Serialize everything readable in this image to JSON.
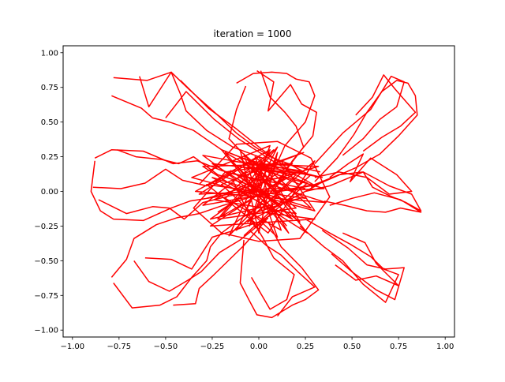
{
  "chart_data": {
    "type": "line",
    "title": "iteration = 1000",
    "xlabel": "",
    "ylabel": "",
    "xlim": [
      -1.05,
      1.05
    ],
    "ylim": [
      -1.05,
      1.05
    ],
    "xticks": [
      -1.0,
      -0.75,
      -0.5,
      -0.25,
      0.0,
      0.25,
      0.5,
      0.75,
      1.0
    ],
    "xtick_labels": [
      "−1.00",
      "−0.75",
      "−0.50",
      "−0.25",
      "0.00",
      "0.25",
      "0.50",
      "0.75",
      "1.00"
    ],
    "yticks": [
      -1.0,
      -0.75,
      -0.5,
      -0.25,
      0.0,
      0.25,
      0.5,
      0.75,
      1.0
    ],
    "ytick_labels": [
      "−1.00",
      "−0.75",
      "−0.50",
      "−0.25",
      "0.00",
      "0.25",
      "0.50",
      "0.75",
      "1.00"
    ],
    "grid": false,
    "line_color": "#ff0000",
    "series": [
      {
        "x": [
          -0.78,
          -0.6,
          -0.47,
          -0.37,
          -0.22,
          -0.12,
          -0.03,
          0.06,
          0.16,
          0.27
        ],
        "y": [
          0.82,
          0.8,
          0.86,
          0.73,
          0.55,
          0.42,
          0.33,
          0.25,
          0.2,
          0.12
        ]
      },
      {
        "x": [
          -0.79,
          -0.63,
          -0.57,
          -0.48,
          -0.35,
          -0.2,
          -0.05,
          0.1,
          0.22
        ],
        "y": [
          0.69,
          0.6,
          0.53,
          0.5,
          0.44,
          0.3,
          0.22,
          0.12,
          0.05
        ]
      },
      {
        "x": [
          -0.64,
          -0.59,
          -0.47,
          -0.42,
          -0.39,
          -0.28,
          -0.14,
          0.02,
          0.15
        ],
        "y": [
          0.83,
          0.61,
          0.86,
          0.7,
          0.58,
          0.44,
          0.32,
          0.24,
          0.12
        ]
      },
      {
        "x": [
          -0.5,
          -0.39,
          -0.24,
          -0.11,
          0.05,
          0.16,
          0.29
        ],
        "y": [
          0.53,
          0.72,
          0.52,
          0.38,
          0.24,
          0.15,
          0.05
        ]
      },
      {
        "x": [
          -0.42,
          -0.27,
          -0.12,
          0.02,
          0.14
        ],
        "y": [
          0.8,
          0.6,
          0.45,
          0.3,
          0.18
        ]
      },
      {
        "x": [
          -0.12,
          -0.03,
          0.07,
          0.15,
          0.2,
          0.27,
          0.3,
          0.25,
          0.14,
          0.08,
          -0.02
        ],
        "y": [
          0.78,
          0.85,
          0.86,
          0.85,
          0.81,
          0.79,
          0.69,
          0.5,
          0.33,
          0.15,
          0.0
        ]
      },
      {
        "x": [
          -0.01,
          0.08,
          0.05,
          0.17,
          0.23,
          0.31,
          0.29,
          0.18,
          0.1
        ],
        "y": [
          0.87,
          0.79,
          0.58,
          0.77,
          0.63,
          0.57,
          0.4,
          0.22,
          0.05
        ]
      },
      {
        "x": [
          -0.07,
          -0.12,
          -0.16,
          -0.09,
          -0.02,
          0.04,
          0.1,
          0.05
        ],
        "y": [
          0.76,
          0.59,
          0.38,
          0.28,
          0.2,
          0.1,
          -0.02,
          -0.15
        ]
      },
      {
        "x": [
          0.01,
          0.06,
          0.14,
          0.2,
          0.24,
          0.15,
          0.08
        ],
        "y": [
          0.87,
          0.68,
          0.57,
          0.47,
          0.32,
          0.16,
          0.03
        ]
      },
      {
        "x": [
          0.3,
          0.42,
          0.51,
          0.58,
          0.66,
          0.74,
          0.8,
          0.84,
          0.85,
          0.75,
          0.65,
          0.52,
          0.4,
          0.28
        ],
        "y": [
          0.07,
          0.24,
          0.41,
          0.57,
          0.72,
          0.8,
          0.78,
          0.69,
          0.55,
          0.4,
          0.27,
          0.17,
          0.1,
          0.03
        ]
      },
      {
        "x": [
          0.3,
          0.45,
          0.6,
          0.71,
          0.78,
          0.74,
          0.65,
          0.56,
          0.45
        ],
        "y": [
          0.2,
          0.42,
          0.59,
          0.83,
          0.79,
          0.61,
          0.52,
          0.38,
          0.26
        ]
      },
      {
        "x": [
          0.52,
          0.61,
          0.67,
          0.73,
          0.84,
          0.76,
          0.66,
          0.56
        ],
        "y": [
          0.55,
          0.68,
          0.84,
          0.74,
          0.57,
          0.47,
          0.39,
          0.29
        ]
      },
      {
        "x": [
          0.25,
          0.38,
          0.47,
          0.56,
          0.61,
          0.7,
          0.79,
          0.87,
          0.82,
          0.7,
          0.56,
          0.43,
          0.3,
          0.18
        ],
        "y": [
          0.0,
          0.04,
          0.09,
          0.14,
          0.03,
          -0.03,
          -0.08,
          -0.14,
          -0.02,
          0.04,
          0.14,
          0.12,
          0.05,
          0.02
        ]
      },
      {
        "x": [
          0.35,
          0.46,
          0.58,
          0.68,
          0.76,
          0.87,
          0.76,
          0.62,
          0.5,
          0.38
        ],
        "y": [
          -0.07,
          -0.1,
          -0.14,
          -0.15,
          -0.12,
          -0.15,
          -0.06,
          -0.01,
          -0.05,
          -0.1
        ]
      },
      {
        "x": [
          0.38,
          0.48,
          0.56,
          0.49,
          0.6,
          0.74,
          0.82,
          0.7,
          0.58,
          0.43,
          0.3
        ],
        "y": [
          0.1,
          0.2,
          0.27,
          0.07,
          0.24,
          0.12,
          0.0,
          -0.02,
          0.1,
          0.14,
          0.1
        ]
      },
      {
        "x": [
          -0.88,
          -0.9,
          -0.85,
          -0.78,
          -0.62,
          -0.47,
          -0.37,
          -0.23,
          -0.1,
          0.05,
          0.2
        ],
        "y": [
          0.22,
          0.0,
          -0.14,
          -0.2,
          -0.21,
          -0.12,
          -0.07,
          -0.04,
          0.0,
          0.02,
          0.02
        ]
      },
      {
        "x": [
          -0.88,
          -0.79,
          -0.62,
          -0.46,
          -0.33,
          -0.2,
          -0.05,
          0.1,
          0.25
        ],
        "y": [
          0.24,
          0.3,
          0.29,
          0.2,
          0.22,
          0.15,
          0.1,
          0.06,
          0.02
        ]
      },
      {
        "x": [
          -0.86,
          -0.71,
          -0.57,
          -0.48,
          -0.4,
          -0.3,
          -0.15,
          0.01
        ],
        "y": [
          -0.06,
          -0.16,
          -0.11,
          -0.12,
          -0.2,
          -0.08,
          -0.03,
          0.0
        ]
      },
      {
        "x": [
          -0.89,
          -0.74,
          -0.61,
          -0.5,
          -0.41,
          -0.28,
          -0.15,
          0.0,
          0.14
        ],
        "y": [
          0.03,
          0.02,
          0.06,
          0.16,
          0.08,
          0.04,
          0.13,
          0.08,
          0.1
        ]
      },
      {
        "x": [
          -0.76,
          -0.66,
          -0.52,
          -0.43,
          -0.35,
          -0.22,
          -0.08,
          0.06
        ],
        "y": [
          0.3,
          0.25,
          0.23,
          0.2,
          0.25,
          0.12,
          0.06,
          -0.02
        ]
      },
      {
        "x": [
          -0.79,
          -0.71,
          -0.67,
          -0.55,
          -0.44,
          -0.32,
          -0.19,
          -0.04
        ],
        "y": [
          -0.62,
          -0.49,
          -0.34,
          -0.24,
          -0.19,
          -0.16,
          -0.1,
          -0.04
        ]
      },
      {
        "x": [
          -0.78,
          -0.68,
          -0.53,
          -0.44,
          -0.36,
          -0.28,
          -0.26,
          -0.2,
          -0.1,
          0.02
        ],
        "y": [
          -0.66,
          -0.84,
          -0.82,
          -0.76,
          -0.62,
          -0.5,
          -0.4,
          -0.3,
          -0.2,
          -0.09
        ]
      },
      {
        "x": [
          -0.67,
          -0.59,
          -0.48,
          -0.38,
          -0.31,
          -0.21,
          -0.1,
          0.04
        ],
        "y": [
          -0.5,
          -0.65,
          -0.72,
          -0.64,
          -0.58,
          -0.44,
          -0.35,
          -0.2
        ]
      },
      {
        "x": [
          -0.61,
          -0.47,
          -0.36,
          -0.25,
          -0.13,
          0.0,
          0.12
        ],
        "y": [
          -0.48,
          -0.49,
          -0.56,
          -0.33,
          -0.28,
          -0.22,
          -0.13
        ]
      },
      {
        "x": [
          -0.46,
          -0.34,
          -0.32,
          -0.24,
          -0.08,
          0.05
        ],
        "y": [
          -0.82,
          -0.81,
          -0.7,
          -0.6,
          -0.39,
          -0.19
        ]
      },
      {
        "x": [
          0.25,
          0.38,
          0.49,
          0.6,
          0.67,
          0.75,
          0.68,
          0.56,
          0.45,
          0.35,
          0.22
        ],
        "y": [
          -0.2,
          -0.3,
          -0.38,
          -0.47,
          -0.56,
          -0.6,
          -0.8,
          -0.67,
          -0.5,
          -0.4,
          -0.25
        ]
      },
      {
        "x": [
          0.34,
          0.48,
          0.58,
          0.68,
          0.78,
          0.73,
          0.63,
          0.5,
          0.39
        ],
        "y": [
          -0.28,
          -0.41,
          -0.53,
          -0.56,
          -0.55,
          -0.78,
          -0.71,
          -0.58,
          -0.45
        ]
      },
      {
        "x": [
          0.45,
          0.57,
          0.63,
          0.75,
          0.63,
          0.52,
          0.41
        ],
        "y": [
          -0.3,
          -0.37,
          -0.52,
          -0.68,
          -0.61,
          -0.64,
          -0.53
        ]
      },
      {
        "x": [
          -0.08,
          -0.1,
          -0.05,
          -0.01,
          0.07,
          0.18,
          0.25,
          0.32,
          0.23,
          0.12,
          0.05
        ],
        "y": [
          -0.35,
          -0.66,
          -0.79,
          -0.89,
          -0.91,
          -0.82,
          -0.78,
          -0.71,
          -0.55,
          -0.4,
          -0.22
        ]
      },
      {
        "x": [
          -0.04,
          0.06,
          0.15,
          0.19,
          0.08,
          0.02,
          -0.04
        ],
        "y": [
          -0.62,
          -0.85,
          -0.78,
          -0.6,
          -0.48,
          -0.33,
          -0.2
        ]
      },
      {
        "x": [
          0.1,
          0.18,
          0.3,
          0.21,
          0.12,
          0.04,
          -0.05
        ],
        "y": [
          -0.9,
          -0.76,
          -0.69,
          -0.58,
          -0.46,
          -0.39,
          -0.28
        ]
      },
      {
        "x": [
          -0.1,
          0.0,
          0.1,
          -0.05,
          0.05,
          -0.2,
          0.22,
          -0.15,
          0.18,
          -0.25,
          0.28,
          -0.02,
          0.12,
          -0.18,
          0.08,
          -0.3,
          0.32,
          -0.06,
          0.2,
          -0.12
        ],
        "y": [
          0.3,
          -0.3,
          0.28,
          -0.25,
          0.2,
          -0.18,
          0.15,
          0.22,
          -0.2,
          0.1,
          -0.12,
          0.25,
          -0.28,
          -0.05,
          0.3,
          -0.1,
          0.05,
          -0.22,
          0.12,
          0.18
        ]
      },
      {
        "x": [
          0.15,
          -0.18,
          0.25,
          -0.28,
          0.05,
          0.3,
          -0.12,
          0.1,
          -0.22,
          0.2,
          -0.05,
          0.35,
          -0.32,
          0.0,
          0.22,
          -0.15,
          0.12,
          -0.25,
          0.28,
          -0.08
        ],
        "y": [
          -0.25,
          0.28,
          -0.05,
          0.05,
          -0.3,
          0.22,
          -0.28,
          0.32,
          -0.2,
          -0.12,
          0.18,
          0.02,
          -0.02,
          0.25,
          -0.22,
          0.15,
          -0.1,
          0.2,
          0.12,
          -0.32
        ]
      },
      {
        "x": [
          -0.22,
          0.18,
          -0.3,
          0.26,
          -0.08,
          0.02,
          0.3,
          -0.26,
          0.14,
          -0.16,
          0.06,
          -0.34,
          0.36,
          -0.1,
          0.24,
          -0.2,
          0.1,
          -0.04,
          0.32,
          -0.28
        ],
        "y": [
          -0.15,
          0.2,
          0.18,
          -0.3,
          0.27,
          -0.15,
          -0.2,
          -0.25,
          0.1,
          -0.32,
          0.3,
          0.0,
          -0.08,
          0.12,
          0.28,
          0.05,
          -0.33,
          0.2,
          0.18,
          -0.05
        ]
      },
      {
        "x": [
          0.04,
          -0.24,
          0.2,
          -0.1,
          0.34,
          -0.3,
          0.08,
          0.16,
          -0.2,
          0.26,
          -0.02,
          -0.14,
          0.12,
          0.3,
          -0.36,
          0.06,
          -0.08,
          0.22,
          -0.26,
          0.0
        ],
        "y": [
          0.12,
          -0.06,
          -0.16,
          0.24,
          0.1,
          0.26,
          -0.12,
          -0.3,
          0.3,
          0.06,
          -0.26,
          0.08,
          0.22,
          -0.14,
          0.1,
          0.33,
          -0.18,
          -0.05,
          -0.2,
          0.05
        ]
      },
      {
        "x": [
          -0.32,
          -0.12,
          0.1,
          0.28,
          0.38,
          0.22,
          0.0,
          -0.2,
          -0.35,
          -0.18,
          0.14,
          0.33
        ],
        "y": [
          0.05,
          0.34,
          0.36,
          0.24,
          -0.04,
          -0.34,
          -0.36,
          -0.3,
          -0.12,
          0.14,
          0.2,
          0.14
        ]
      }
    ]
  }
}
